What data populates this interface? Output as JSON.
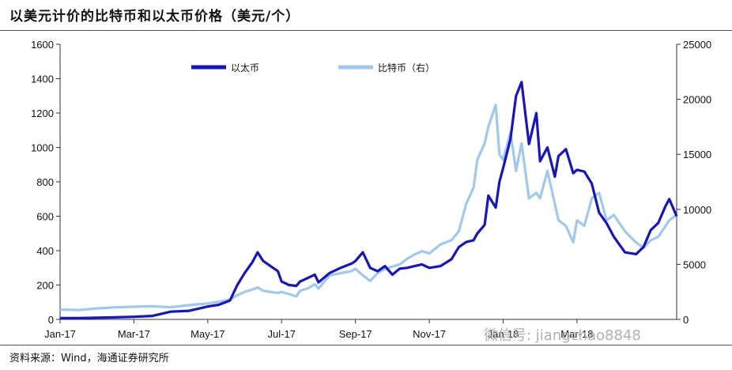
{
  "page": {
    "title": "以美元计价的比特币和以太币价格（美元/个）",
    "source": "资料来源：Wind，海通证券研究所",
    "watermark": "微信号: jiangchao8848"
  },
  "colors": {
    "eth": "#1414c8",
    "btc": "#9ec9f0",
    "axis": "#333333"
  },
  "chart_data": {
    "type": "line",
    "title": "以美元计价的比特币和以太币价格（美元/个）",
    "x_ticks": [
      "Jan-17",
      "Mar-17",
      "May-17",
      "Jul-17",
      "Sep-17",
      "Nov-17",
      "Jan-18",
      "Mar-18"
    ],
    "x_tick_positions": [
      0,
      2,
      4,
      6,
      8,
      10,
      12,
      14
    ],
    "xlim": [
      0,
      16.7
    ],
    "y_left": {
      "lim": [
        0,
        1600
      ],
      "ticks": [
        0,
        200,
        400,
        600,
        800,
        1000,
        1200,
        1400,
        1600
      ]
    },
    "y_right": {
      "lim": [
        0,
        25000
      ],
      "ticks": [
        0,
        5000,
        10000,
        15000,
        20000,
        25000
      ]
    },
    "legend": [
      "以太币",
      "比特币（右）"
    ],
    "legend_position": "top",
    "series": [
      {
        "name": "以太币",
        "axis": "left",
        "x": [
          0,
          0.5,
          1,
          1.5,
          2,
          2.5,
          3,
          3.5,
          4,
          4.3,
          4.6,
          4.8,
          5,
          5.2,
          5.35,
          5.5,
          5.7,
          5.9,
          6,
          6.2,
          6.4,
          6.5,
          6.7,
          6.9,
          7,
          7.3,
          7.6,
          7.9,
          8,
          8.2,
          8.4,
          8.6,
          8.8,
          9,
          9.2,
          9.4,
          9.6,
          9.8,
          10,
          10.3,
          10.6,
          10.8,
          11,
          11.2,
          11.3,
          11.5,
          11.6,
          11.8,
          11.9,
          12,
          12.2,
          12.35,
          12.5,
          12.7,
          12.9,
          13,
          13.2,
          13.4,
          13.5,
          13.7,
          13.9,
          14,
          14.2,
          14.4,
          14.6,
          14.8,
          15,
          15.3,
          15.6,
          15.8,
          16,
          16.2,
          16.4,
          16.5,
          16.7
        ],
        "values": [
          8,
          8,
          10,
          12,
          15,
          20,
          45,
          50,
          75,
          85,
          110,
          200,
          270,
          330,
          390,
          340,
          310,
          280,
          220,
          200,
          195,
          220,
          240,
          260,
          215,
          270,
          300,
          325,
          340,
          390,
          300,
          280,
          310,
          260,
          295,
          300,
          310,
          320,
          300,
          310,
          350,
          420,
          450,
          460,
          500,
          550,
          720,
          650,
          800,
          880,
          1050,
          1300,
          1380,
          1020,
          1200,
          920,
          1000,
          830,
          950,
          990,
          850,
          870,
          860,
          790,
          620,
          560,
          480,
          390,
          380,
          420,
          520,
          560,
          660,
          700,
          600
        ]
      },
      {
        "name": "比特币（右）",
        "axis": "right",
        "x": [
          0,
          0.5,
          1,
          1.5,
          2,
          2.5,
          3,
          3.5,
          4,
          4.3,
          4.6,
          4.8,
          5,
          5.2,
          5.35,
          5.5,
          5.7,
          5.9,
          6,
          6.2,
          6.4,
          6.5,
          6.7,
          6.9,
          7,
          7.3,
          7.6,
          7.9,
          8,
          8.2,
          8.4,
          8.6,
          8.8,
          9,
          9.2,
          9.4,
          9.6,
          9.8,
          10,
          10.3,
          10.6,
          10.8,
          11,
          11.2,
          11.3,
          11.5,
          11.6,
          11.8,
          11.9,
          12,
          12.2,
          12.35,
          12.5,
          12.7,
          12.9,
          13,
          13.2,
          13.4,
          13.5,
          13.7,
          13.9,
          14,
          14.2,
          14.4,
          14.6,
          14.8,
          15,
          15.3,
          15.6,
          15.8,
          16,
          16.2,
          16.4,
          16.5,
          16.7
        ],
        "values": [
          900,
          850,
          1000,
          1100,
          1150,
          1200,
          1100,
          1300,
          1450,
          1600,
          1800,
          2200,
          2500,
          2700,
          2900,
          2600,
          2500,
          2400,
          2500,
          2300,
          2100,
          2600,
          2800,
          3200,
          2800,
          4000,
          4200,
          4400,
          4600,
          4000,
          3500,
          4200,
          4600,
          4800,
          5000,
          5500,
          5900,
          6200,
          6000,
          6800,
          7200,
          8000,
          10500,
          12000,
          14500,
          16000,
          17500,
          19500,
          15000,
          14500,
          17000,
          13500,
          16000,
          11000,
          11500,
          11000,
          13500,
          10500,
          9000,
          8500,
          7000,
          9000,
          8500,
          11000,
          11500,
          9000,
          9500,
          8000,
          7000,
          6500,
          7200,
          7500,
          8500,
          9000,
          9500
        ]
      }
    ]
  }
}
